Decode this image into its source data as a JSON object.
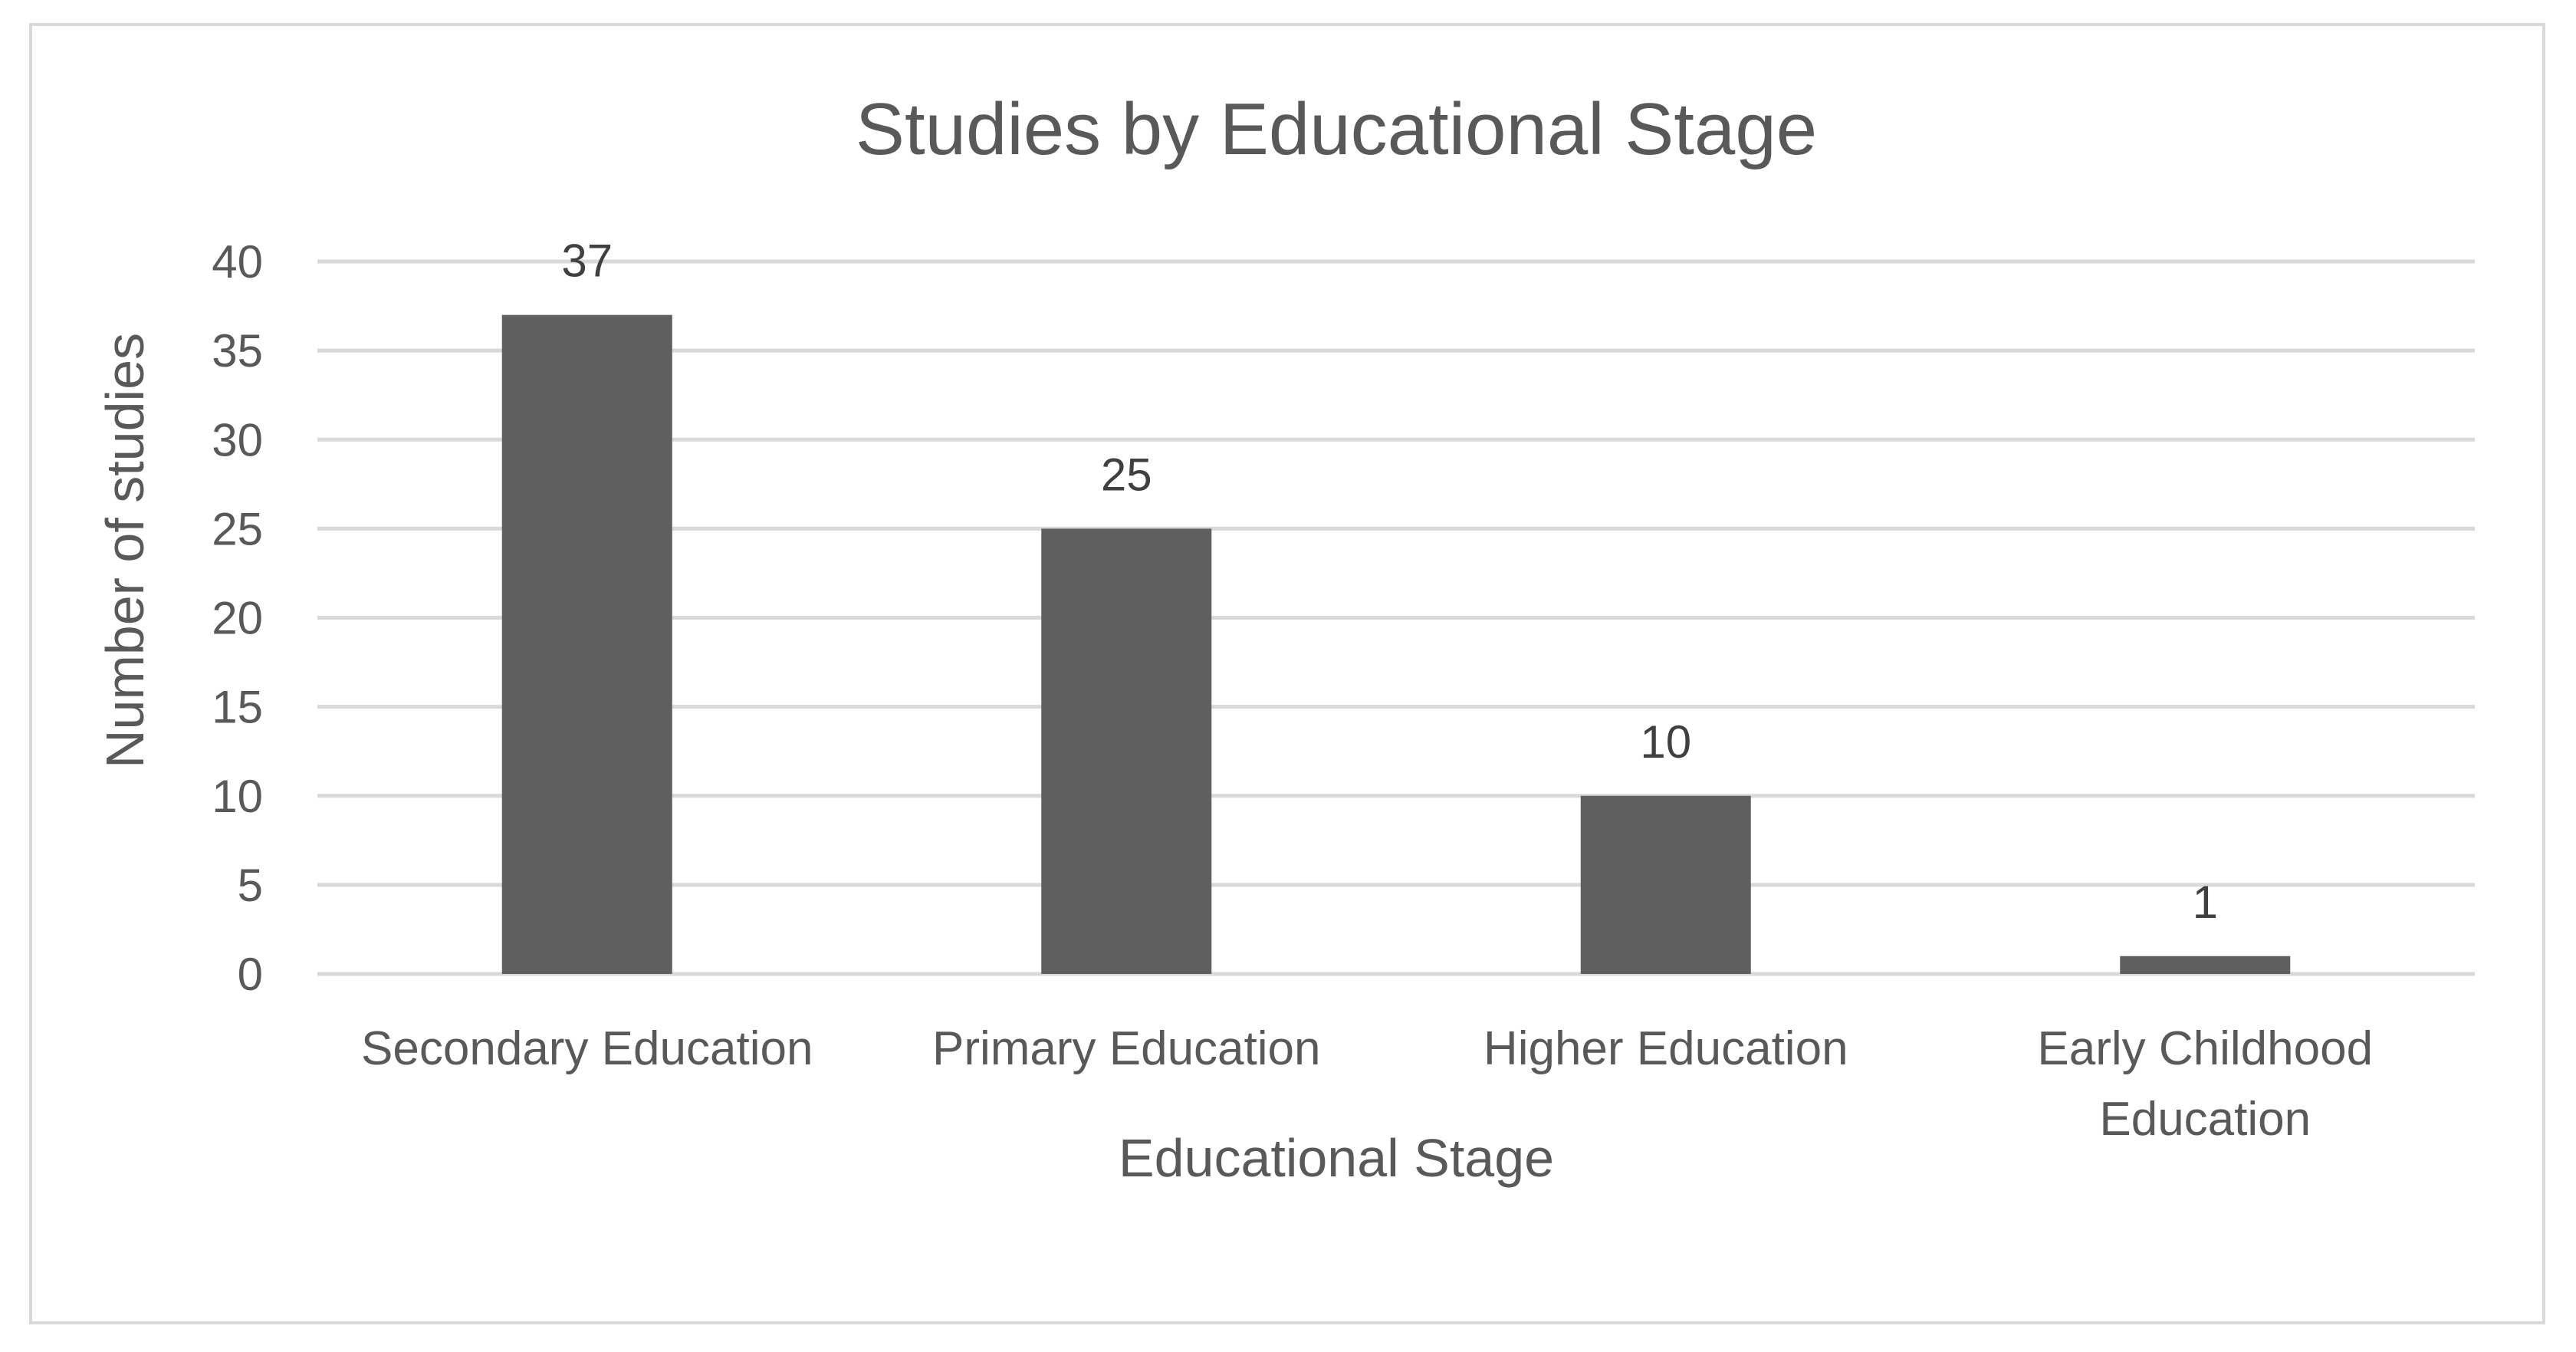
{
  "chart_data": {
    "type": "bar",
    "title": "Studies by Educational Stage",
    "xlabel": "Educational Stage",
    "ylabel": "Number of studies",
    "categories": [
      "Secondary Education",
      "Primary Education",
      "Higher Education",
      "Early Childhood Education"
    ],
    "category_lines": [
      [
        "Secondary Education"
      ],
      [
        "Primary Education"
      ],
      [
        "Higher Education"
      ],
      [
        "Early Childhood",
        "Education"
      ]
    ],
    "values": [
      37,
      25,
      10,
      1
    ],
    "data_labels": [
      "37",
      "25",
      "10",
      "1"
    ],
    "ylim": [
      0,
      40
    ],
    "yticks": [
      0,
      5,
      10,
      15,
      20,
      25,
      30,
      35,
      40
    ],
    "grid": true,
    "legend": "none",
    "bar_color": "#5f5f5f"
  }
}
